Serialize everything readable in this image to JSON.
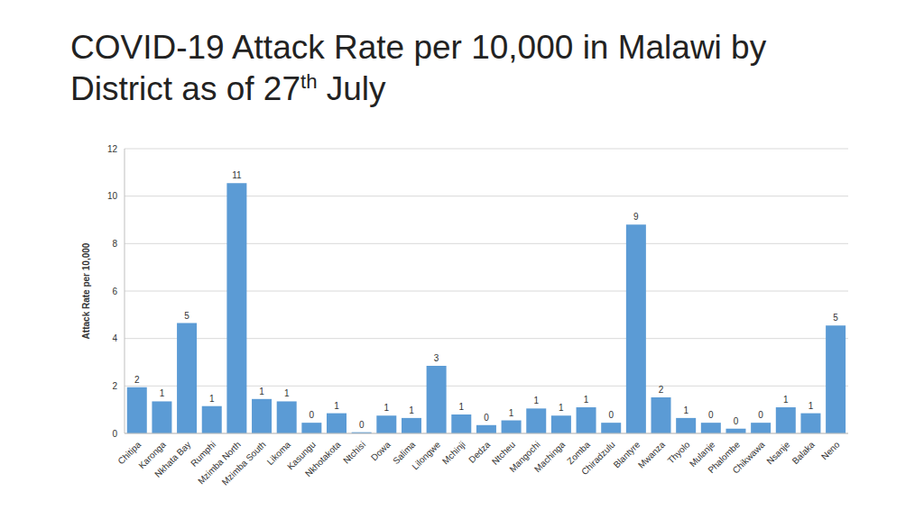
{
  "chart_data": {
    "type": "bar",
    "title": "COVID-19 Attack Rate per 10,000 in Malawi by District as of 27th July",
    "y_label": "Attack Rate per 10,000",
    "categories": [
      "Chitipa",
      "Karonga",
      "Nkhata Bay",
      "Rumphi",
      "Mzimba North",
      "Mzimba South",
      "Likoma",
      "Kasungu",
      "Nkhotakota",
      "Ntchisi",
      "Dowa",
      "Salima",
      "Lilongwe",
      "Mchinji",
      "Dedza",
      "Ntcheu",
      "Mangochi",
      "Machinga",
      "Zomba",
      "Chiradzulu",
      "Blantyre",
      "Mwanza",
      "Thyolo",
      "Mulanje",
      "Phalombe",
      "Chikwawa",
      "Nsanje",
      "Balaka",
      "Neno"
    ],
    "values": [
      1.95,
      1.35,
      4.65,
      1.15,
      10.55,
      1.45,
      1.35,
      0.45,
      0.85,
      0.05,
      0.75,
      0.65,
      2.85,
      0.8,
      0.35,
      0.55,
      1.05,
      0.75,
      1.1,
      0.45,
      8.8,
      1.52,
      0.65,
      0.45,
      0.2,
      0.45,
      1.1,
      0.85,
      4.55
    ],
    "value_labels": [
      "2",
      "1",
      "5",
      "1",
      "11",
      "1",
      "1",
      "0",
      "1",
      "0",
      "1",
      "1",
      "3",
      "1",
      "0",
      "1",
      "1",
      "1",
      "1",
      "0",
      "9",
      "2",
      "1",
      "0",
      "0",
      "0",
      "1",
      "1",
      "5"
    ],
    "color": "#5b9bd5",
    "ylim": [
      0,
      12
    ],
    "yticks": [
      0,
      2,
      4,
      6,
      8,
      10,
      12
    ],
    "grid": true,
    "data_labels": true
  }
}
